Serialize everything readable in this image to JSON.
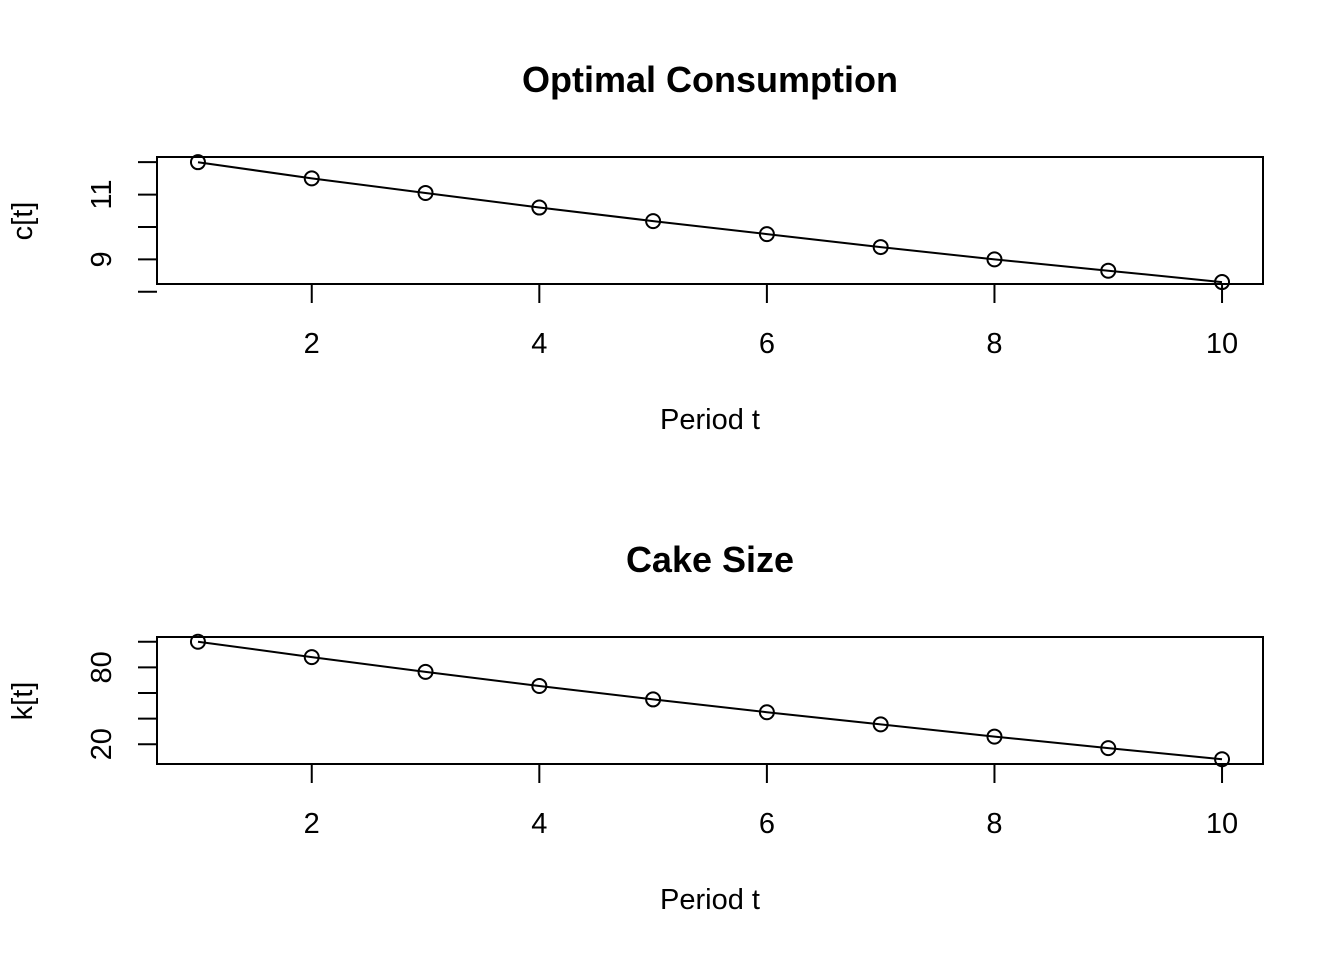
{
  "chart_data": [
    {
      "type": "line",
      "title": "Optimal Consumption",
      "xlabel": "Period t",
      "ylabel": "c[t]",
      "x": [
        1,
        2,
        3,
        4,
        5,
        6,
        7,
        8,
        9,
        10
      ],
      "values": [
        12.0,
        11.5,
        11.05,
        10.6,
        10.18,
        9.78,
        9.38,
        9.0,
        8.65,
        8.3
      ],
      "xticks": [
        2,
        4,
        6,
        8,
        10
      ],
      "yticks": [
        8,
        9,
        10,
        11,
        12
      ],
      "ytick_labels": [
        "",
        "9",
        "",
        "11",
        ""
      ],
      "xlim": [
        0.64,
        10.36
      ],
      "ylim": [
        8.24,
        12.16
      ],
      "grid": false,
      "markers": "open-circle"
    },
    {
      "type": "line",
      "title": "Cake Size",
      "xlabel": "Period t",
      "ylabel": "k[t]",
      "x": [
        1,
        2,
        3,
        4,
        5,
        6,
        7,
        8,
        9,
        10
      ],
      "values": [
        100.0,
        88.0,
        76.5,
        65.5,
        55.0,
        45.0,
        35.5,
        26.0,
        17.0,
        8.3
      ],
      "xticks": [
        2,
        4,
        6,
        8,
        10
      ],
      "yticks": [
        20,
        40,
        60,
        80,
        100
      ],
      "ytick_labels": [
        "20",
        "",
        "",
        "80",
        ""
      ],
      "xlim": [
        0.64,
        10.36
      ],
      "ylim": [
        4.6,
        103.7
      ],
      "grid": false,
      "markers": "open-circle"
    }
  ]
}
